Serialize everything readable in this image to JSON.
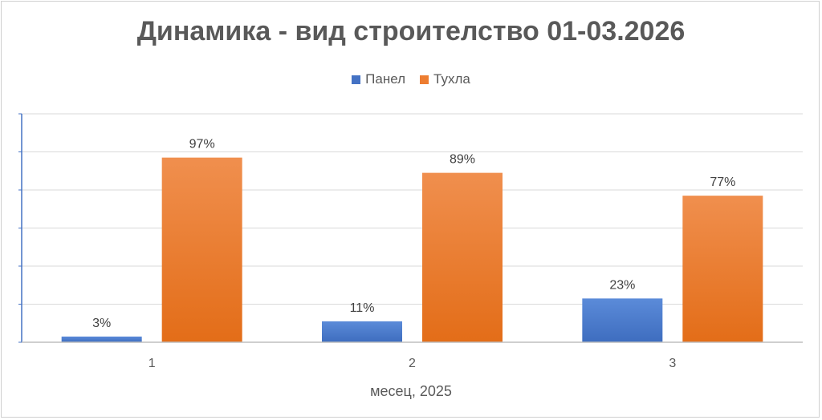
{
  "chart_data": {
    "type": "bar",
    "title": "Динамика - вид строителство 01-03.2026",
    "xlabel": "месец, 2025",
    "ylabel": "",
    "categories": [
      "1",
      "2",
      "3"
    ],
    "ylim": [
      0,
      120
    ],
    "grid": true,
    "legend_position": "top",
    "series": [
      {
        "name": "Панел",
        "values": [
          3,
          11,
          23
        ],
        "labels": [
          "3%",
          "11%",
          "23%"
        ],
        "color": "#4472C4"
      },
      {
        "name": "Тухла",
        "values": [
          97,
          89,
          77
        ],
        "labels": [
          "97%",
          "89%",
          "77%"
        ],
        "color": "#ED7D31"
      }
    ]
  }
}
